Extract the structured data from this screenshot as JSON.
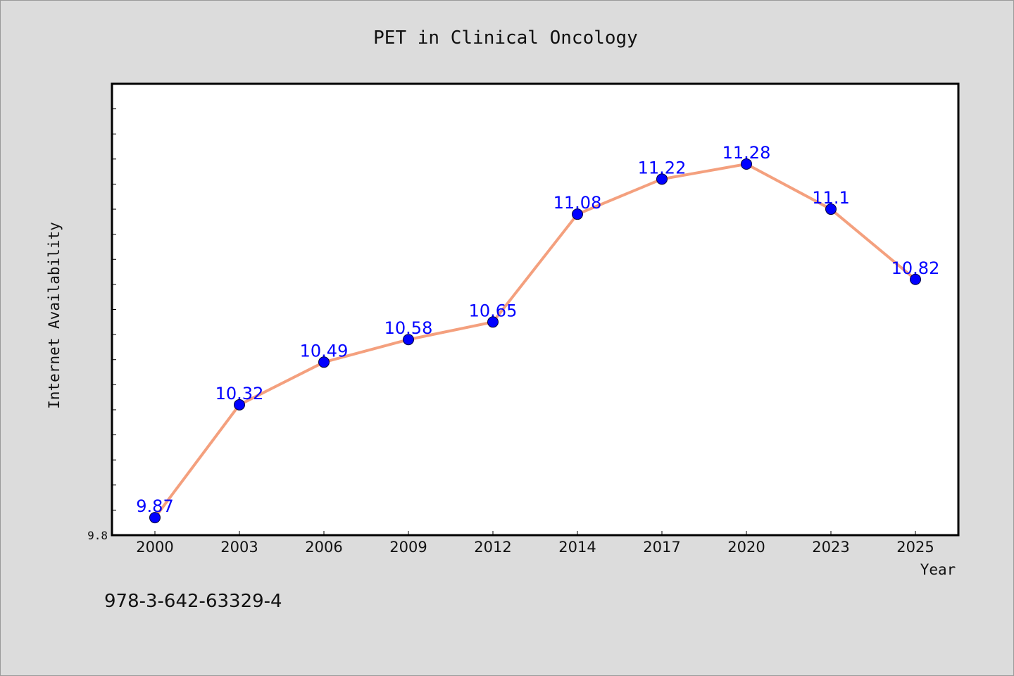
{
  "chart_data": {
    "type": "line",
    "title": "PET in Clinical Oncology",
    "xlabel": "Year",
    "ylabel": "Internet Availability",
    "categories": [
      "2000",
      "2003",
      "2006",
      "2009",
      "2012",
      "2014",
      "2017",
      "2020",
      "2023",
      "2025"
    ],
    "series": [
      {
        "values": [
          9.87,
          10.32,
          10.49,
          10.58,
          10.65,
          11.08,
          11.22,
          11.28,
          11.1,
          10.82
        ],
        "line_color": "#f4a07e",
        "marker_color": "#0000ff"
      }
    ],
    "data_labels": [
      "9.87",
      "10.32",
      "10.49",
      "10.58",
      "10.65",
      "11.08",
      "11.22",
      "11.28",
      "11.1",
      "10.82"
    ],
    "ylim": [
      9.8,
      11.6
    ],
    "y_ticks_labeled": [
      "9.8"
    ],
    "y_minor_step": 0.1,
    "grid": false,
    "legend": "none",
    "background_color": "#dcdcdc",
    "plot_background": "#ffffff"
  },
  "footer": {
    "isbn": "978-3-642-63329-4"
  }
}
